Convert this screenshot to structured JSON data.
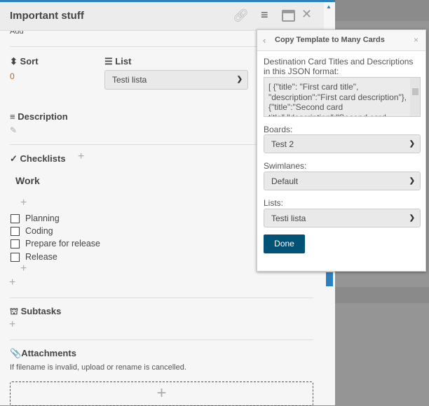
{
  "card": {
    "title": "Important stuff",
    "add_label": "Add",
    "sort": {
      "label": "Sort",
      "value": "0"
    },
    "list": {
      "label": "List",
      "selected": "Testi lista"
    },
    "description": {
      "label": "Description"
    },
    "checklists": {
      "label": "Checklists",
      "checklist_title": "Work",
      "items": [
        {
          "label": "Planning",
          "checked": false
        },
        {
          "label": "Coding",
          "checked": false
        },
        {
          "label": "Prepare for release",
          "checked": false
        },
        {
          "label": "Release",
          "checked": false
        }
      ]
    },
    "subtasks": {
      "label": "Subtasks"
    },
    "attachments": {
      "label": "Attachments",
      "note": "If filename is invalid, upload or rename is cancelled."
    }
  },
  "popup": {
    "title": "Copy Template to Many Cards",
    "json_label": "Destination Card Titles and Descriptions in this JSON format:",
    "json_value": "[ {\"title\": \"First card title\", \"description\":\"First card description\"}, {\"title\":\"Second card title\",\"description\":\"Second card",
    "boards_label": "Boards:",
    "boards_selected": "Test 2",
    "swimlanes_label": "Swimlanes:",
    "swimlanes_selected": "Default",
    "lists_label": "Lists:",
    "lists_selected": "Testi lista",
    "done_label": "Done"
  },
  "colors": {
    "accent": "#2d7fbd",
    "done_button": "#005377"
  }
}
